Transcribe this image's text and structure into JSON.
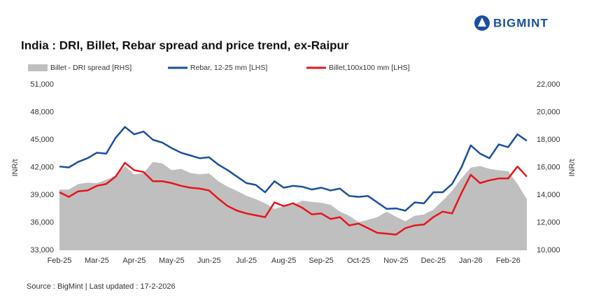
{
  "chart_data": {
    "type": "line",
    "title": "India : DRI, Billet, Rebar spread and price trend, ex-Raipur",
    "logo_text": "BIGMINT",
    "source": "Source : BigMint | Last updated : 17-2-2026",
    "ylabel": "INR/t",
    "y2label": "INR/t",
    "legend": "top",
    "grid": false,
    "categories": [
      "Feb-25",
      null,
      null,
      null,
      "Mar-25",
      null,
      null,
      null,
      "Apr-25",
      null,
      null,
      null,
      "May-25",
      null,
      null,
      null,
      "Jun-25",
      null,
      null,
      null,
      "Jul-25",
      null,
      null,
      null,
      "Aug-25",
      null,
      null,
      null,
      "Sep-25",
      null,
      null,
      null,
      "Oct-25",
      null,
      null,
      null,
      "Nov-25",
      null,
      null,
      null,
      "Dec-25",
      null,
      null,
      null,
      "Jan-26",
      null,
      null,
      null,
      "Feb-26",
      null,
      null
    ],
    "ylim": [
      33000,
      51000
    ],
    "yticks": [
      {
        "value": 33000,
        "label": "33,000"
      },
      {
        "value": 36000,
        "label": "36,000"
      },
      {
        "value": 39000,
        "label": "39,000"
      },
      {
        "value": 42000,
        "label": "42,000"
      },
      {
        "value": 45000,
        "label": "45,000"
      },
      {
        "value": 48000,
        "label": "48,000"
      },
      {
        "value": 51000,
        "label": "51,000"
      }
    ],
    "y2lim": [
      10000,
      22000
    ],
    "y2ticks": [
      {
        "value": 10000,
        "label": "10,000"
      },
      {
        "value": 12000,
        "label": "12,000"
      },
      {
        "value": 14000,
        "label": "14,000"
      },
      {
        "value": 16000,
        "label": "16,000"
      },
      {
        "value": 18000,
        "label": "18,000"
      },
      {
        "value": 20000,
        "label": "20,000"
      },
      {
        "value": 22000,
        "label": "22,000"
      }
    ],
    "series": [
      {
        "name": "Billet - DRI spread  [RHS]",
        "type": "area",
        "axis": "y2",
        "color": "#bfbfbf",
        "values": [
          14400,
          14400,
          14800,
          14900,
          14860,
          15100,
          15400,
          16100,
          15500,
          15600,
          16400,
          16300,
          15800,
          15900,
          15600,
          15500,
          15570,
          15000,
          14600,
          14300,
          13950,
          13700,
          13400,
          13000,
          13190,
          13300,
          13600,
          13500,
          13440,
          13300,
          12800,
          12500,
          12030,
          12200,
          12400,
          12800,
          12430,
          12100,
          12500,
          12600,
          12940,
          13600,
          14300,
          15200,
          15980,
          16100,
          15900,
          15800,
          15720,
          14800,
          13700
        ]
      },
      {
        "name": "Rebar, 12-25 mm [LHS]",
        "type": "line",
        "color": "#1a4fa0",
        "values": [
          42100,
          42000,
          42600,
          43000,
          43600,
          43500,
          45200,
          46400,
          45600,
          45900,
          45000,
          44700,
          44100,
          43600,
          43300,
          43000,
          43100,
          42300,
          41700,
          41000,
          40300,
          40100,
          39300,
          40500,
          39800,
          40000,
          39900,
          39600,
          39800,
          39500,
          39700,
          38900,
          38800,
          38900,
          38200,
          37500,
          37550,
          37300,
          38200,
          38100,
          39300,
          39300,
          40200,
          42000,
          44400,
          43500,
          43000,
          44500,
          44200,
          45600,
          44900
        ]
      },
      {
        "name": "Billet,100x100 mm [LHS]",
        "type": "line",
        "color": "#e8141b",
        "values": [
          39300,
          38800,
          39400,
          39500,
          40000,
          40200,
          41000,
          42500,
          41700,
          41500,
          40500,
          40500,
          40300,
          40000,
          39800,
          39700,
          39500,
          38600,
          37800,
          37300,
          37000,
          36800,
          36600,
          38200,
          37800,
          38100,
          37600,
          36900,
          37000,
          36400,
          36600,
          35700,
          35900,
          35400,
          34900,
          34800,
          34700,
          35400,
          35700,
          35800,
          36600,
          37200,
          37000,
          39200,
          41200,
          40300,
          40600,
          40800,
          40800,
          42100,
          41000
        ]
      }
    ]
  }
}
